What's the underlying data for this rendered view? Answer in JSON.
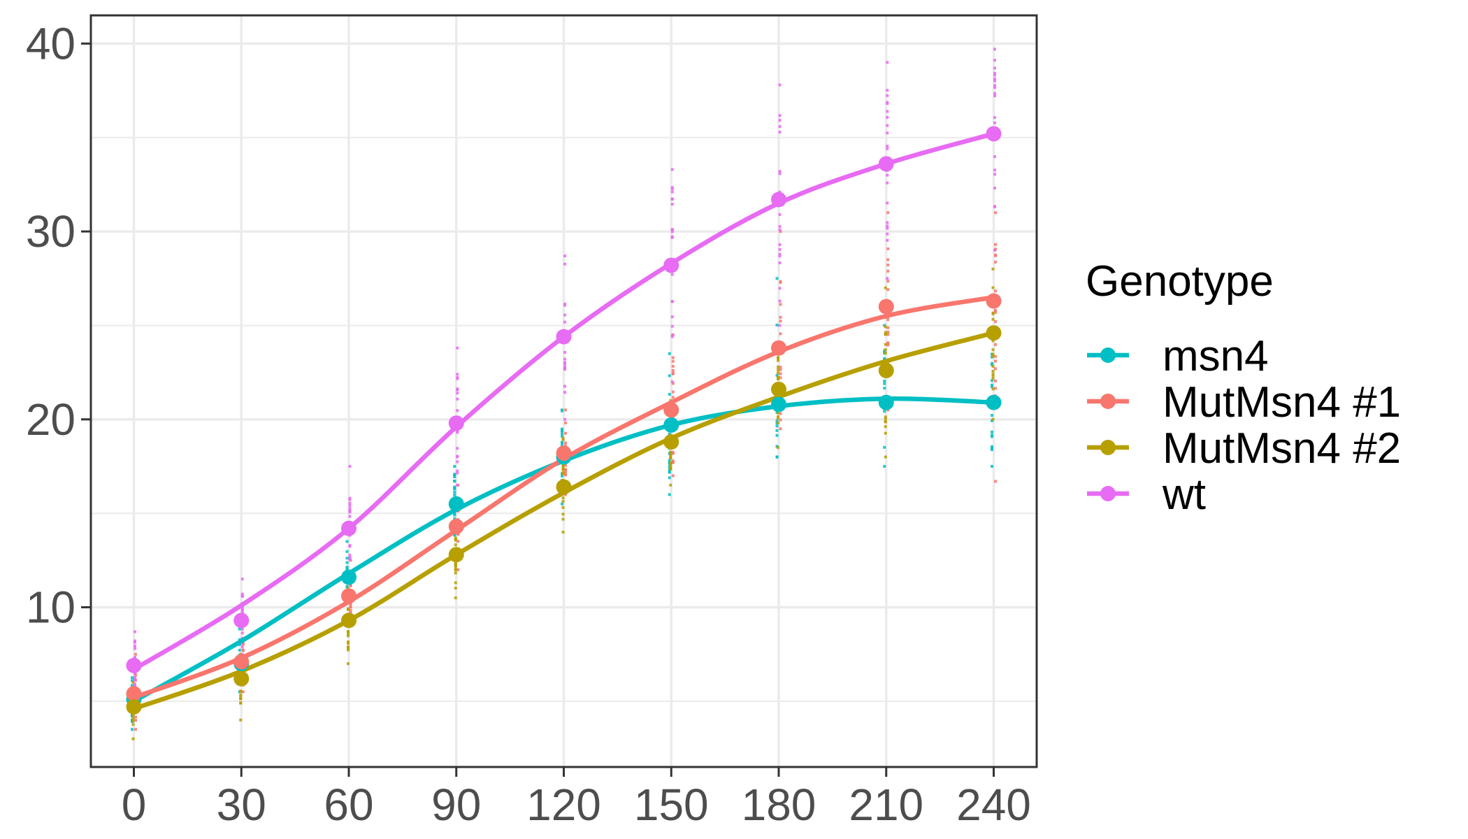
{
  "chart_data": {
    "type": "line",
    "title": "",
    "xlabel": "",
    "ylabel": "",
    "x": [
      0,
      30,
      60,
      90,
      120,
      150,
      180,
      210,
      240
    ],
    "x_ticks": [
      "0",
      "30",
      "60",
      "90",
      "120",
      "150",
      "180",
      "210",
      "240"
    ],
    "y_ticks": [
      "10",
      "20",
      "30",
      "40"
    ],
    "xlim": [
      -12,
      252
    ],
    "ylim": [
      1.5,
      41.5
    ],
    "grid": true,
    "legend": {
      "title": "Genotype",
      "placement": "right"
    },
    "series": [
      {
        "name": "msn4",
        "color": "#00BFC4",
        "means": [
          5.1,
          7.0,
          11.6,
          15.5,
          18.0,
          19.7,
          20.8,
          20.9,
          20.9
        ],
        "smooth": [
          5.0,
          8.2,
          11.8,
          15.2,
          17.8,
          19.7,
          20.7,
          21.1,
          20.9
        ],
        "raw_range": [
          [
            3.5,
            7.0
          ],
          [
            5.5,
            9.0
          ],
          [
            9.5,
            13.5
          ],
          [
            13.0,
            17.5
          ],
          [
            15.5,
            20.5
          ],
          [
            16.0,
            23.5
          ],
          [
            18.0,
            27.5
          ],
          [
            17.5,
            25.0
          ],
          [
            17.5,
            24.5
          ]
        ]
      },
      {
        "name": "MutMsn4 #1",
        "color": "#F8766D",
        "means": [
          5.4,
          7.1,
          10.6,
          14.3,
          18.2,
          20.5,
          23.8,
          26.0,
          26.3
        ],
        "smooth": [
          5.2,
          7.3,
          10.3,
          14.1,
          17.9,
          20.9,
          23.6,
          25.5,
          26.5
        ],
        "raw_range": [
          [
            3.5,
            7.5
          ],
          [
            5.5,
            9.0
          ],
          [
            9.0,
            12.5
          ],
          [
            12.0,
            16.5
          ],
          [
            16.0,
            20.5
          ],
          [
            17.0,
            24.5
          ],
          [
            19.5,
            30.0
          ],
          [
            20.5,
            31.0
          ],
          [
            16.7,
            31.0
          ]
        ]
      },
      {
        "name": "MutMsn4 #2",
        "color": "#B79F00",
        "means": [
          4.7,
          6.2,
          9.3,
          12.8,
          16.4,
          18.8,
          21.6,
          22.6,
          24.6
        ],
        "smooth": [
          4.6,
          6.6,
          9.3,
          12.8,
          16.1,
          19.0,
          21.2,
          23.1,
          24.6
        ],
        "raw_range": [
          [
            3.0,
            6.0
          ],
          [
            4.0,
            7.5
          ],
          [
            7.0,
            11.0
          ],
          [
            10.5,
            14.5
          ],
          [
            14.0,
            19.0
          ],
          [
            16.5,
            21.0
          ],
          [
            18.5,
            24.0
          ],
          [
            18.0,
            27.0
          ],
          [
            20.0,
            28.0
          ]
        ]
      },
      {
        "name": "wt",
        "color": "#E76BF3",
        "means": [
          6.9,
          9.3,
          14.2,
          19.8,
          24.4,
          28.2,
          31.7,
          33.6,
          35.2
        ],
        "smooth": [
          6.7,
          10.1,
          14.2,
          19.6,
          24.4,
          28.3,
          31.5,
          33.6,
          35.2
        ],
        "raw_range": [
          [
            5.0,
            8.7
          ],
          [
            7.5,
            11.5
          ],
          [
            11.5,
            17.5
          ],
          [
            16.5,
            23.8
          ],
          [
            20.0,
            28.7
          ],
          [
            22.0,
            33.3
          ],
          [
            25.0,
            37.8
          ],
          [
            27.5,
            39.0
          ],
          [
            29.0,
            39.7
          ]
        ]
      }
    ]
  }
}
